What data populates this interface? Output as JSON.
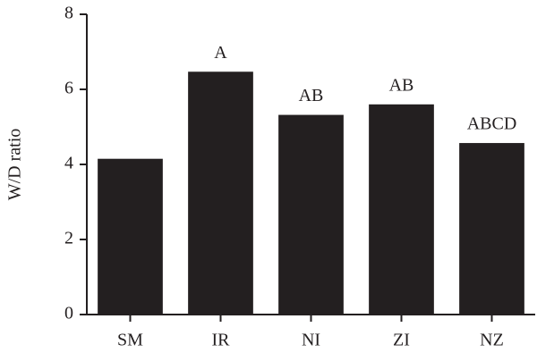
{
  "chart_data": {
    "type": "bar",
    "y_label": "W/D ratio",
    "categories": [
      "SM",
      "IR",
      "NI",
      "ZI",
      "NZ"
    ],
    "values": [
      4.15,
      6.47,
      5.32,
      5.6,
      4.57
    ],
    "annotations": [
      null,
      "A",
      "AB",
      "AB",
      "ABCD"
    ],
    "color": "#231f20",
    "ylim": [
      0,
      8
    ],
    "yticks": [
      0,
      2,
      4,
      6,
      8
    ]
  }
}
